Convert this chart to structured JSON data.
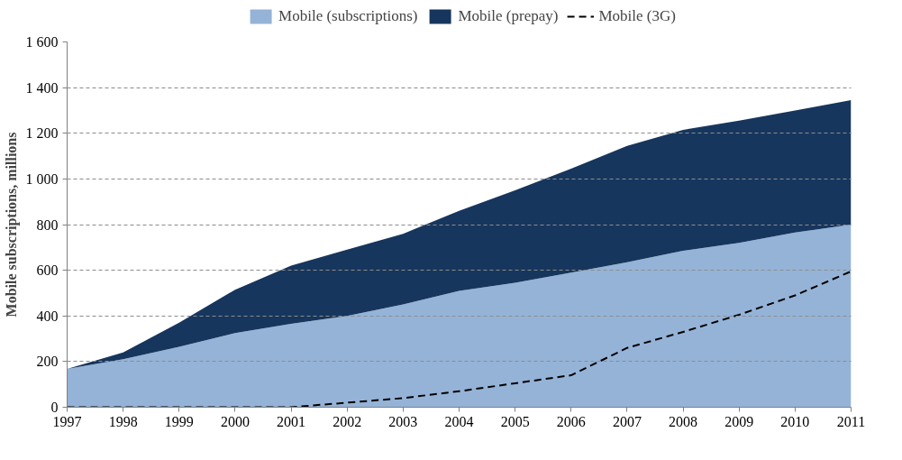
{
  "chart_data": {
    "type": "area",
    "stacked": true,
    "ylabel": "Mobile subscriptions, millions",
    "x": [
      1997,
      1998,
      1999,
      2000,
      2001,
      2002,
      2003,
      2004,
      2005,
      2006,
      2007,
      2008,
      2009,
      2010,
      2011
    ],
    "series": [
      {
        "name": "Mobile (subscriptions)",
        "color": "#95b3d7",
        "values": [
          168,
          210,
          265,
          325,
          365,
          400,
          450,
          510,
          545,
          590,
          635,
          685,
          720,
          765,
          800
        ]
      },
      {
        "name": "Mobile (prepay)",
        "color": "#17365d",
        "values": [
          0,
          30,
          105,
          190,
          255,
          290,
          310,
          350,
          405,
          455,
          510,
          530,
          535,
          535,
          545
        ]
      },
      {
        "name": "Mobile (3G)",
        "type": "line",
        "line_style": "dashed",
        "color": "#000000",
        "values": [
          0,
          0,
          0,
          0,
          0,
          20,
          40,
          70,
          105,
          140,
          260,
          330,
          405,
          490,
          595
        ]
      }
    ],
    "xlim": [
      1997,
      2011
    ],
    "xticks": [
      1997,
      1998,
      1999,
      2000,
      2001,
      2002,
      2003,
      2004,
      2005,
      2006,
      2007,
      2008,
      2009,
      2010,
      2011
    ],
    "ylim": [
      0,
      1600
    ],
    "yticks": [
      0,
      200,
      400,
      600,
      800,
      {
        "value": 1000,
        "label": "1 000"
      },
      {
        "value": 1200,
        "label": "1 200"
      },
      {
        "value": 1400,
        "label": "1 400"
      },
      {
        "value": 1600,
        "label": "1 600"
      }
    ],
    "grid": "y",
    "legend": "top"
  }
}
